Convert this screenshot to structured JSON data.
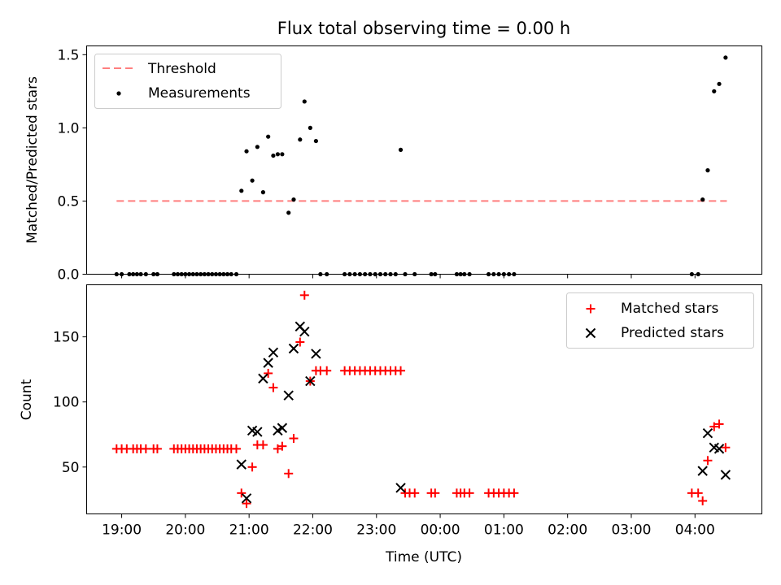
{
  "chart_data": [
    {
      "type": "line+scatter",
      "title": "Flux total observing time = 0.00 h",
      "xlabel": "",
      "ylabel": "Matched/Predicted stars",
      "ylim": [
        0,
        1.56
      ],
      "yticks": [
        "0.0",
        "0.5",
        "1.0",
        "1.5"
      ],
      "ytick_values": [
        0,
        0.5,
        1.0,
        1.5
      ],
      "legend": {
        "position": "upper-left",
        "entries": [
          "Threshold",
          "Measurements"
        ]
      },
      "colors": {
        "threshold": "#ff7f7f",
        "measurements": "#000000"
      },
      "threshold": {
        "name": "Threshold",
        "x": [
          18.92,
          28.5
        ],
        "y": [
          0.5,
          0.5
        ]
      },
      "measurements": {
        "name": "Measurements",
        "x": [
          18.92,
          19.0,
          19.12,
          19.18,
          19.24,
          19.3,
          19.38,
          19.5,
          19.56,
          19.82,
          19.88,
          19.94,
          20.0,
          20.06,
          20.12,
          20.18,
          20.24,
          20.3,
          20.36,
          20.42,
          20.48,
          20.54,
          20.6,
          20.66,
          20.72,
          20.8,
          20.88,
          20.96,
          21.05,
          21.13,
          21.22,
          21.3,
          21.38,
          21.45,
          21.52,
          21.62,
          21.7,
          21.8,
          21.87,
          21.96,
          22.05,
          22.12,
          22.22,
          22.5,
          22.58,
          22.66,
          22.74,
          22.82,
          22.9,
          22.98,
          23.06,
          23.14,
          23.22,
          23.3,
          23.38,
          23.45,
          23.6,
          23.86,
          23.92,
          24.26,
          24.32,
          24.38,
          24.46,
          24.76,
          24.84,
          24.92,
          25.0,
          25.08,
          25.16,
          27.95,
          28.05,
          28.12,
          28.2,
          28.3,
          28.38,
          28.48
        ],
        "y": [
          0,
          0,
          0,
          0,
          0,
          0,
          0,
          0,
          0,
          0,
          0,
          0,
          0,
          0,
          0,
          0,
          0,
          0,
          0,
          0,
          0,
          0,
          0,
          0,
          0,
          0,
          0.57,
          0.84,
          0.64,
          0.87,
          0.56,
          0.94,
          0.81,
          0.82,
          0.82,
          0.42,
          0.51,
          0.92,
          1.18,
          1.0,
          0.91,
          0,
          0,
          0,
          0,
          0,
          0,
          0,
          0,
          0,
          0,
          0,
          0,
          0,
          0.85,
          0,
          0,
          0,
          0,
          0,
          0,
          0,
          0,
          0,
          0,
          0,
          0,
          0,
          0,
          0,
          0,
          0.51,
          0.71,
          1.25,
          1.3,
          1.48
        ]
      }
    },
    {
      "type": "scatter",
      "title": "",
      "xlabel": "Time (UTC)",
      "ylabel": "Count",
      "xlim": [
        18.45,
        29.05
      ],
      "ylim": [
        14,
        190
      ],
      "yticks": [
        "50",
        "100",
        "150"
      ],
      "ytick_values": [
        50,
        100,
        150
      ],
      "xticks": [
        "19:00",
        "20:00",
        "21:00",
        "22:00",
        "23:00",
        "00:00",
        "01:00",
        "02:00",
        "03:00",
        "04:00"
      ],
      "xtick_values": [
        19,
        20,
        21,
        22,
        23,
        24,
        25,
        26,
        27,
        28
      ],
      "legend": {
        "position": "upper-right",
        "entries": [
          "Matched stars",
          "Predicted stars"
        ]
      },
      "colors": {
        "matched": "#ff0000",
        "predicted": "#000000"
      },
      "matched": {
        "name": "Matched stars",
        "x": [
          18.92,
          19.0,
          19.08,
          19.18,
          19.24,
          19.3,
          19.38,
          19.5,
          19.56,
          19.82,
          19.88,
          19.94,
          20.0,
          20.06,
          20.12,
          20.18,
          20.24,
          20.3,
          20.36,
          20.42,
          20.48,
          20.54,
          20.6,
          20.66,
          20.72,
          20.8,
          20.88,
          20.96,
          21.05,
          21.13,
          21.22,
          21.3,
          21.38,
          21.45,
          21.52,
          21.62,
          21.7,
          21.8,
          21.87,
          21.96,
          22.05,
          22.12,
          22.22,
          22.5,
          22.58,
          22.66,
          22.74,
          22.82,
          22.9,
          22.98,
          23.06,
          23.14,
          23.22,
          23.3,
          23.38,
          23.45,
          23.52,
          23.6,
          23.86,
          23.92,
          24.26,
          24.32,
          24.38,
          24.46,
          24.76,
          24.84,
          24.92,
          25.0,
          25.08,
          25.16,
          27.95,
          28.05,
          28.12,
          28.2,
          28.3,
          28.38,
          28.48
        ],
        "y": [
          64,
          64,
          64,
          64,
          64,
          64,
          64,
          64,
          64,
          64,
          64,
          64,
          64,
          64,
          64,
          64,
          64,
          64,
          64,
          64,
          64,
          64,
          64,
          64,
          64,
          64,
          30,
          22,
          50,
          67,
          67,
          122,
          111,
          64,
          66,
          45,
          72,
          146,
          182,
          116,
          124,
          124,
          124,
          124,
          124,
          124,
          124,
          124,
          124,
          124,
          124,
          124,
          124,
          124,
          124,
          30,
          30,
          30,
          30,
          30,
          30,
          30,
          30,
          30,
          30,
          30,
          30,
          30,
          30,
          30,
          30,
          30,
          24,
          55,
          81,
          83,
          65
        ]
      },
      "predicted": {
        "name": "Predicted stars",
        "x": [
          20.88,
          20.96,
          21.05,
          21.13,
          21.22,
          21.3,
          21.38,
          21.45,
          21.52,
          21.62,
          21.7,
          21.8,
          21.87,
          21.96,
          22.05,
          23.38,
          28.12,
          28.2,
          28.3,
          28.38,
          28.48
        ],
        "y": [
          52,
          26,
          78,
          77,
          118,
          130,
          138,
          78,
          80,
          105,
          141,
          158,
          154,
          116,
          137,
          34,
          47,
          76,
          65,
          64,
          44
        ]
      }
    }
  ]
}
